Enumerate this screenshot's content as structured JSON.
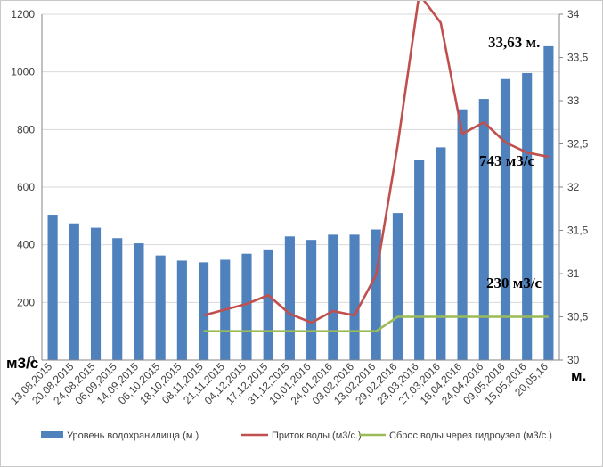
{
  "chart_data": {
    "type": "bar",
    "categories": [
      "13,08,2015",
      "20,08,2015",
      "24,08,2015",
      "06,09,2015",
      "14,09,2015",
      "06,10,2015",
      "18,10,2015",
      "08,11,2015",
      "21,11,2015",
      "04,12,2015",
      "17,12,2015",
      "31,12,2015",
      "10,01,2016",
      "24,01,2016",
      "03,02,2016",
      "13,02,2016",
      "29,02,2016",
      "23,03,2016",
      "27,03,2016",
      "18,04,2016",
      "24,04,2016",
      "09,05,2016",
      "15,05,2016",
      "20,05,16"
    ],
    "series": [
      {
        "name": "Уровень водохранилища (м.)",
        "kind": "bar",
        "axis": "right",
        "color": "#4F81BD",
        "values": [
          31.68,
          31.58,
          31.53,
          31.41,
          31.35,
          31.21,
          31.15,
          31.13,
          31.16,
          31.23,
          31.28,
          31.43,
          31.39,
          31.45,
          31.45,
          31.51,
          31.7,
          32.31,
          32.46,
          32.9,
          33.02,
          33.25,
          33.32,
          33.63
        ]
      },
      {
        "name": "Приток воды (м3/с.)",
        "kind": "line",
        "axis": "left",
        "color": "#C0504D",
        "values": [
          null,
          null,
          null,
          null,
          null,
          null,
          null,
          155,
          175,
          195,
          225,
          160,
          130,
          170,
          155,
          295,
          745,
          1270,
          1170,
          785,
          825,
          755,
          720,
          705
        ]
      },
      {
        "name": "Сброс воды через гидроузел (м3/с.)",
        "kind": "line",
        "axis": "left",
        "color": "#9BBB59",
        "values": [
          null,
          null,
          null,
          null,
          null,
          null,
          null,
          100,
          100,
          100,
          100,
          100,
          100,
          100,
          100,
          100,
          150,
          150,
          150,
          150,
          150,
          150,
          150,
          150
        ]
      }
    ],
    "y_left": {
      "min": 0,
      "max": 1200,
      "step": 200,
      "ticks": [
        "0",
        "200",
        "400",
        "600",
        "800",
        "1000",
        "1200"
      ],
      "unit_label": "м3/с"
    },
    "y_right": {
      "min": 30,
      "max": 34,
      "step": 0.5,
      "ticks": [
        "30",
        "30,5",
        "31",
        "31,5",
        "32",
        "32,5",
        "33",
        "33,5",
        "34"
      ],
      "unit_label": "м."
    },
    "grid": true,
    "legend_position": "bottom",
    "annotations": [
      "33,63 м.",
      "743 м3/с",
      "230 м3/с"
    ]
  }
}
